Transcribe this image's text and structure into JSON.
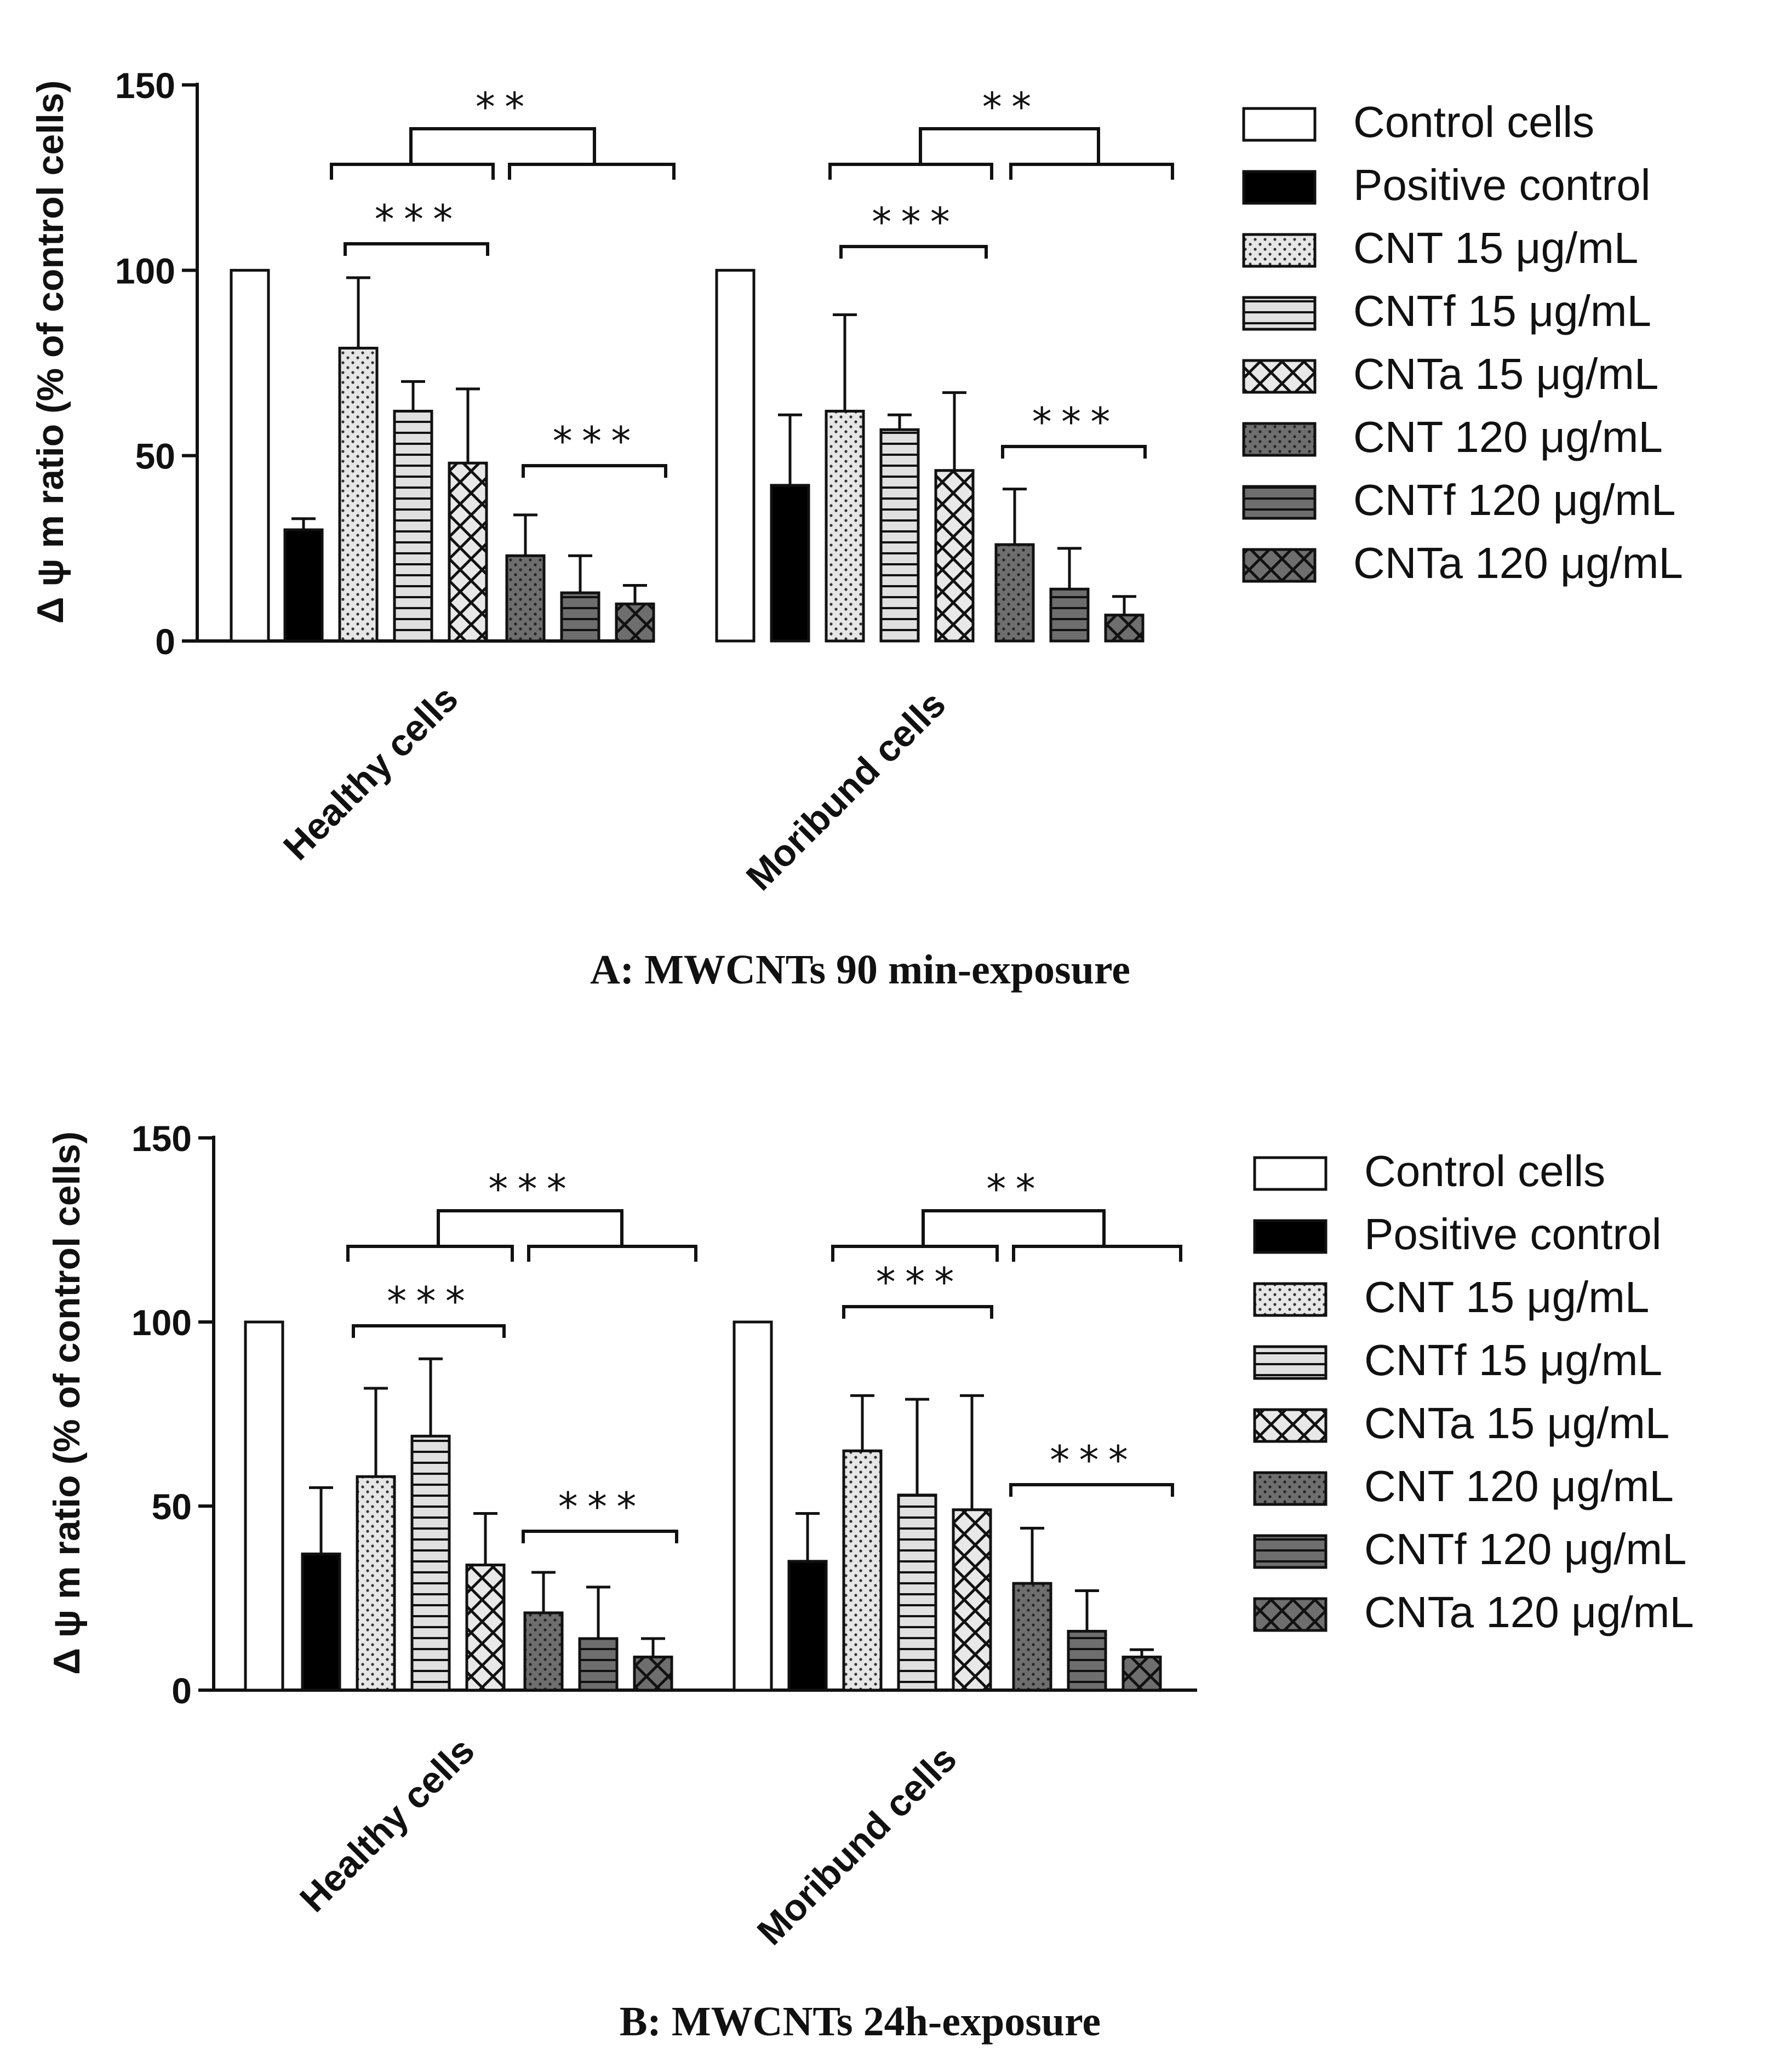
{
  "chart_data": [
    {
      "type": "bar",
      "caption": "A: MWCNTs 90 min-exposure",
      "ylabel": "Δ ψ m ratio (% of control cells)",
      "ylim": [
        0,
        150
      ],
      "yticks": [
        "0",
        "50",
        "100",
        "150"
      ],
      "categories": [
        "Healthy cells",
        "Moribund cells"
      ],
      "legend_position": "right",
      "series": [
        {
          "name": "Control cells",
          "values": [
            100,
            100
          ],
          "errors": [
            null,
            null
          ]
        },
        {
          "name": "Positive control",
          "values": [
            30,
            42
          ],
          "errors": [
            33,
            61
          ]
        },
        {
          "name": "CNT 15 μg/mL",
          "values": [
            79,
            62
          ],
          "errors": [
            98,
            88
          ]
        },
        {
          "name": "CNTf 15 μg/mL",
          "values": [
            62,
            57
          ],
          "errors": [
            70,
            61
          ]
        },
        {
          "name": "CNTa 15 μg/mL",
          "values": [
            48,
            46
          ],
          "errors": [
            68,
            67
          ]
        },
        {
          "name": "CNT 120 μg/mL",
          "values": [
            23,
            26
          ],
          "errors": [
            34,
            41
          ]
        },
        {
          "name": "CNTf 120 μg/mL",
          "values": [
            13,
            14
          ],
          "errors": [
            23,
            25
          ]
        },
        {
          "name": "CNTa 120 μg/mL",
          "values": [
            10,
            7
          ],
          "errors": [
            15,
            12
          ]
        }
      ],
      "significance": [
        {
          "label": "**",
          "group": "Healthy cells"
        },
        {
          "label": "***",
          "group": "Healthy cells"
        },
        {
          "label": "***",
          "group": "Healthy cells"
        },
        {
          "label": "**",
          "group": "Moribund cells"
        },
        {
          "label": "***",
          "group": "Moribund cells"
        },
        {
          "label": "***",
          "group": "Moribund cells"
        }
      ]
    },
    {
      "type": "bar",
      "caption": "B: MWCNTs 24h-exposure",
      "ylabel": "Δ ψ m ratio (% of control cells)",
      "ylim": [
        0,
        150
      ],
      "yticks": [
        "0",
        "50",
        "100",
        "150"
      ],
      "categories": [
        "Healthy cells",
        "Moribund cells"
      ],
      "legend_position": "right",
      "series": [
        {
          "name": "Control cells",
          "values": [
            100,
            100
          ],
          "errors": [
            null,
            null
          ]
        },
        {
          "name": "Positive control",
          "values": [
            37,
            35
          ],
          "errors": [
            55,
            48
          ]
        },
        {
          "name": "CNT 15 μg/mL",
          "values": [
            58,
            65
          ],
          "errors": [
            82,
            80
          ]
        },
        {
          "name": "CNTf 15 μg/mL",
          "values": [
            69,
            53
          ],
          "errors": [
            90,
            79
          ]
        },
        {
          "name": "CNTa 15 μg/mL",
          "values": [
            34,
            49
          ],
          "errors": [
            48,
            80
          ]
        },
        {
          "name": "CNT 120 μg/mL",
          "values": [
            21,
            29
          ],
          "errors": [
            32,
            44
          ]
        },
        {
          "name": "CNTf 120 μg/mL",
          "values": [
            14,
            16
          ],
          "errors": [
            28,
            27
          ]
        },
        {
          "name": "CNTa 120 μg/mL",
          "values": [
            9,
            9
          ],
          "errors": [
            14,
            11
          ]
        }
      ],
      "significance": [
        {
          "label": "***",
          "group": "Healthy cells"
        },
        {
          "label": "***",
          "group": "Healthy cells"
        },
        {
          "label": "***",
          "group": "Healthy cells"
        },
        {
          "label": "**",
          "group": "Moribund cells"
        },
        {
          "label": "***",
          "group": "Moribund cells"
        },
        {
          "label": "***",
          "group": "Moribund cells"
        }
      ]
    }
  ]
}
